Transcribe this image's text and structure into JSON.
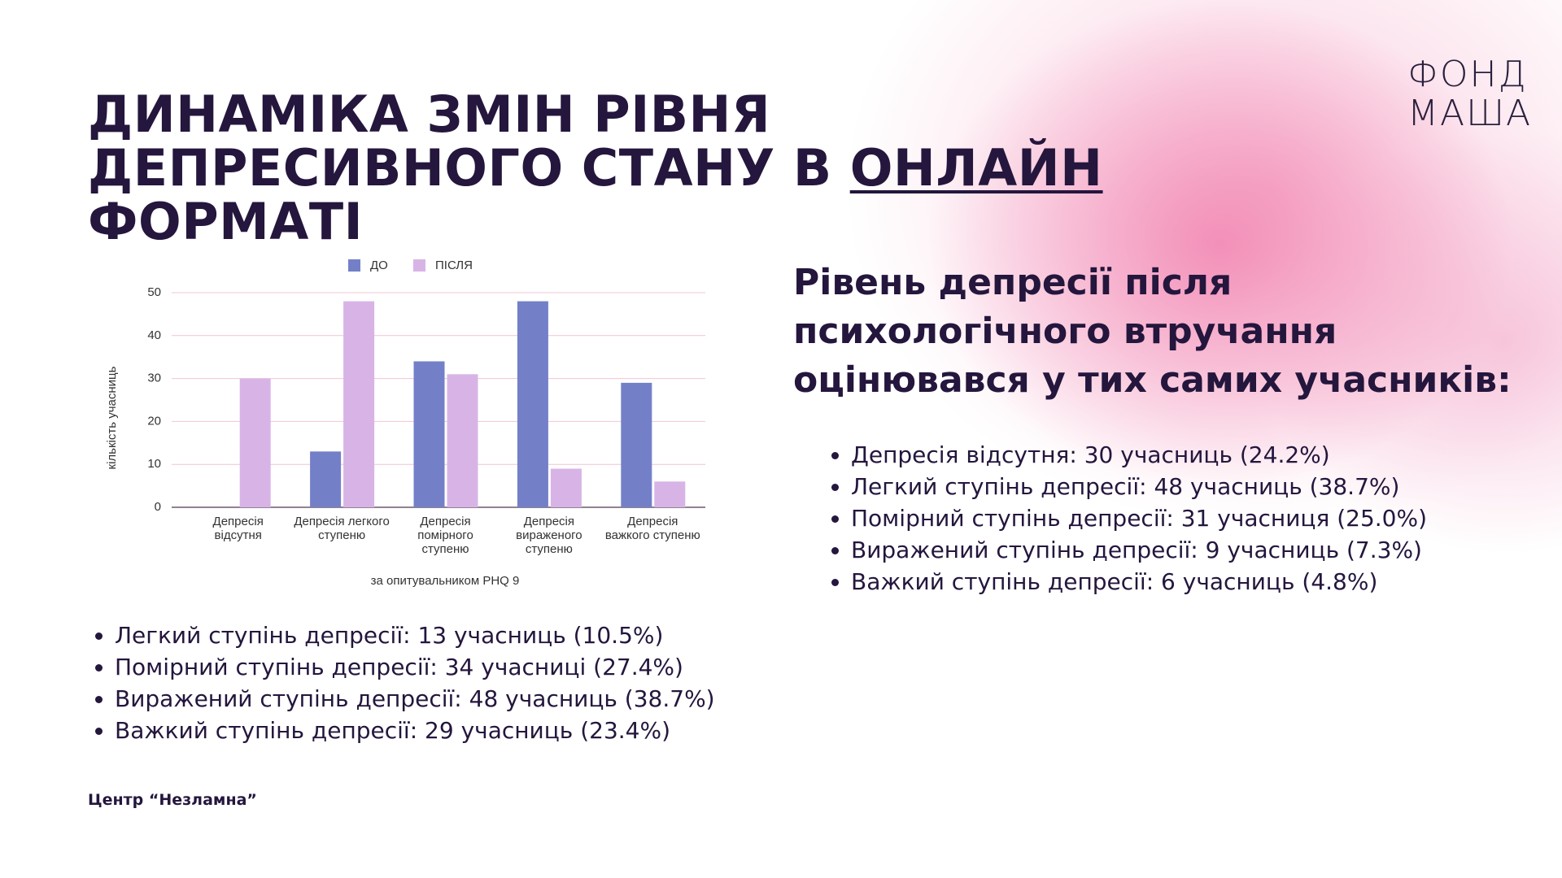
{
  "header": {
    "title_before": "ДИНАМІКА ЗМІН РІВНЯ ДЕПРЕСИВНОГО СТАНУ В",
    "title_underlined": "ОНЛАЙН",
    "title_after": "ФОРМАТІ"
  },
  "logo": [
    "ФОНД",
    "МАША"
  ],
  "chart_data": {
    "type": "bar",
    "categories": [
      "Депресія відсутня",
      "Депресія легкого ступеню",
      "Депресія помірного ступеню",
      "Депресія вираженого ступеню",
      "Депресія важкого ступеню"
    ],
    "series": [
      {
        "name": "ДО",
        "color": "#7380c8",
        "values": [
          0,
          13,
          34,
          48,
          29
        ]
      },
      {
        "name": "ПІСЛЯ",
        "color": "#d8b4e6",
        "values": [
          30,
          48,
          31,
          9,
          6
        ]
      }
    ],
    "ylim": [
      0,
      50
    ],
    "yticks": [
      0,
      10,
      20,
      30,
      40,
      50
    ],
    "grid": true,
    "ylabel": "кількість учасниць",
    "xlabel": "за опитувальником PHQ 9",
    "legend": "top"
  },
  "left_list": [
    "Легкий ступінь депресії: 13 учасниць (10.5%)",
    "Помірний ступінь депресії: 34 учасниці (27.4%)",
    "Виражений ступінь депресії: 48 учасниць (38.7%)",
    "Важкий ступінь депресії: 29 учасниць (23.4%)"
  ],
  "right_heading": "Рівень депресії після психологічного втручання оцінювався у тих самих учасників:",
  "right_list": [
    "Депресія відсутня: 30 учасниць (24.2%)",
    "Легкий ступінь депресії: 48 учасниць (38.7%)",
    "Помірний ступінь депресії: 31 учасниця (25.0%)",
    "Виражений ступінь депресії: 9 учасниць (7.3%)",
    "Важкий ступінь депресії: 6 учасниць (4.8%)"
  ],
  "footer": "Центр “Незламна”"
}
